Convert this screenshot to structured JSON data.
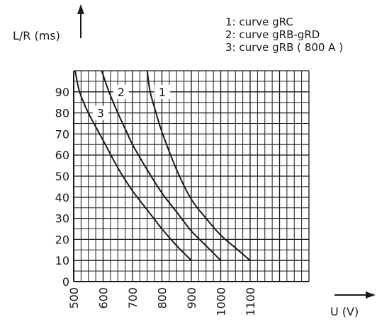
{
  "chart_data": {
    "type": "line",
    "ylabel": "L/R (ms)",
    "xlabel": "U (V)",
    "xlim": [
      500,
      1300
    ],
    "ylim": [
      0,
      100
    ],
    "grid": true,
    "legend_position": "top-right",
    "legend": [
      "1: curve gRC",
      "2: curve gRB-gRD",
      "3: curve gRB ( 800 A )"
    ],
    "x_ticks": [
      "500",
      "600",
      "700",
      "800",
      "900",
      "1000",
      "1100"
    ],
    "y_ticks": [
      "0",
      "10",
      "20",
      "30",
      "40",
      "50",
      "60",
      "70",
      "80",
      "90"
    ],
    "series": [
      {
        "name": "1",
        "x": [
          750,
          760,
          780,
          800,
          850,
          900,
          950,
          1000,
          1050,
          1100
        ],
        "y": [
          100,
          90,
          80,
          71,
          53,
          39,
          30,
          22,
          16,
          10
        ]
      },
      {
        "name": "2",
        "x": [
          595,
          620,
          650,
          680,
          700,
          750,
          800,
          850,
          900,
          950,
          1000
        ],
        "y": [
          100,
          90,
          80,
          71,
          65,
          53,
          42,
          33,
          24,
          17,
          10
        ]
      },
      {
        "name": "3",
        "x": [
          505,
          520,
          550,
          600,
          650,
          700,
          750,
          800,
          850,
          900
        ],
        "y": [
          100,
          90,
          80,
          67,
          54,
          43,
          34,
          25,
          17,
          10
        ]
      }
    ]
  }
}
